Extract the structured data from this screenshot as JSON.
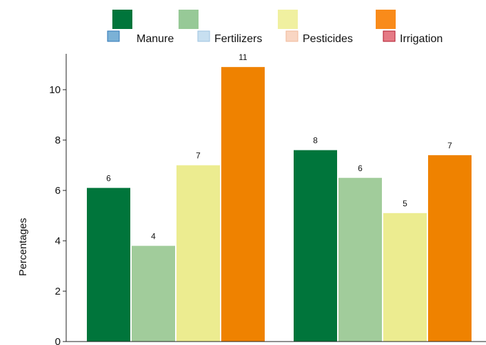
{
  "chart_data": {
    "type": "bar",
    "categories": [
      "",
      ""
    ],
    "series": [
      {
        "name": "Manure",
        "values": [
          6.1,
          7.6
        ],
        "labels": [
          "6",
          "8"
        ],
        "color": "#00753b",
        "legend_swatch_color": "#7bb1d6",
        "legend_swatch_border": "#2e75b6"
      },
      {
        "name": "Fertilizers",
        "values": [
          3.8,
          6.5
        ],
        "labels": [
          "4",
          "6"
        ],
        "color": "#a1cc9b",
        "legend_swatch_color": "#c7dff0",
        "legend_swatch_border": "#9dc3e0"
      },
      {
        "name": "Pesticides",
        "values": [
          7.0,
          5.1
        ],
        "labels": [
          "7",
          "5"
        ],
        "color": "#ecec90",
        "legend_swatch_color": "#f9d6c3",
        "legend_swatch_border": "#f0b89a"
      },
      {
        "name": "Irrigation",
        "values": [
          10.9,
          7.4
        ],
        "labels": [
          "11",
          "7"
        ],
        "color": "#ef8200",
        "legend_swatch_color": "#e57a85",
        "legend_swatch_border": "#b0182b"
      }
    ],
    "legend_top_colors": [
      "#00753b",
      "#97c997",
      "#f0f0a0",
      "#f98b1a"
    ],
    "ylabel": "Percentages",
    "xlabel": "",
    "yticks": [
      0,
      2,
      4,
      6,
      8,
      10
    ],
    "ylim": [
      0,
      11.6
    ],
    "grid": false,
    "legend_position": "top"
  }
}
